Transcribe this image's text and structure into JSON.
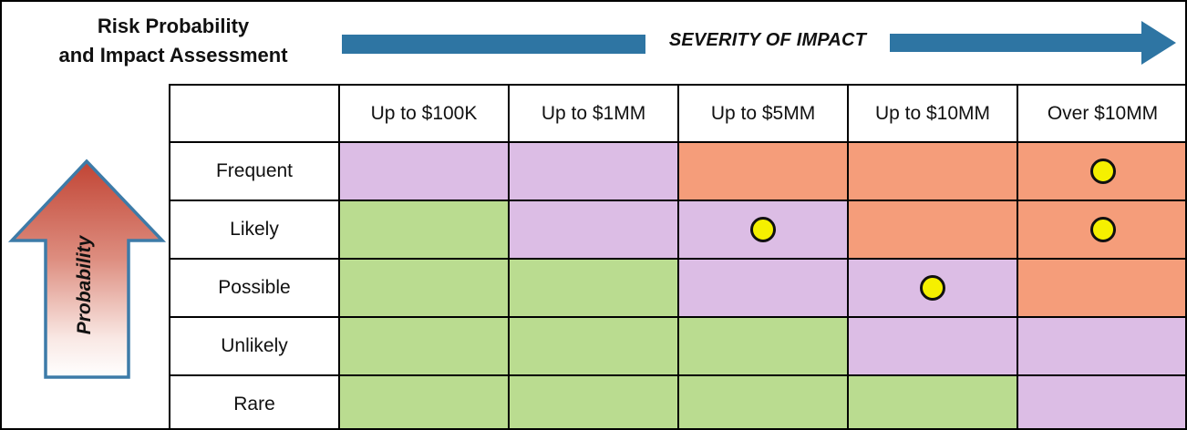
{
  "title": "Risk Probability\nand Impact Assessment",
  "severity_axis": {
    "label": "SEVERITY OF IMPACT",
    "arrow_color": "#2e75a3"
  },
  "probability_axis": {
    "label": "Probability",
    "outline_color": "#3d7ba8",
    "gradient_top": "#c14434",
    "gradient_bottom": "#ffffff"
  },
  "matrix": {
    "type": "heatmap",
    "columns": [
      "Up to $100K",
      "Up to $1MM",
      "Up to $5MM",
      "Up to $10MM",
      "Over $10MM"
    ],
    "rows": [
      "Frequent",
      "Likely",
      "Possible",
      "Unlikely",
      "Rare"
    ],
    "cell_levels": [
      [
        "medium",
        "medium",
        "high",
        "high",
        "high"
      ],
      [
        "low",
        "medium",
        "medium",
        "high",
        "high"
      ],
      [
        "low",
        "low",
        "medium",
        "medium",
        "high"
      ],
      [
        "low",
        "low",
        "low",
        "medium",
        "medium"
      ],
      [
        "low",
        "low",
        "low",
        "low",
        "medium"
      ]
    ],
    "level_colors": {
      "low": "#badc90",
      "medium": "#dcbde5",
      "high": "#f59d7a"
    },
    "markers": [
      {
        "row": "Frequent",
        "column": "Over $10MM"
      },
      {
        "row": "Likely",
        "column": "Up to $5MM"
      },
      {
        "row": "Likely",
        "column": "Over $10MM"
      },
      {
        "row": "Possible",
        "column": "Up to $10MM"
      }
    ],
    "marker_style": {
      "fill": "#f5f000",
      "outline": "#111111"
    }
  }
}
